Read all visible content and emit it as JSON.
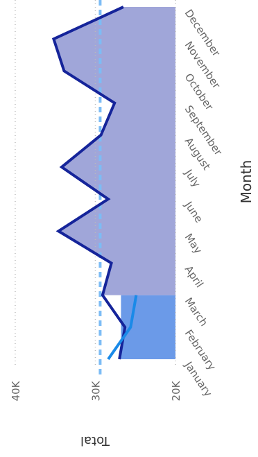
{
  "chart_data": {
    "type": "line",
    "x_label": "Month",
    "y_label": "Total",
    "categories": [
      "January",
      "February",
      "March",
      "April",
      "May",
      "June",
      "July",
      "August",
      "September",
      "October",
      "November",
      "December"
    ],
    "series": [
      {
        "type": "area",
        "color": "#6b9ae8",
        "values": [
          26800,
          26800,
          26800,
          null,
          null,
          null,
          null,
          null,
          null,
          null,
          null,
          null
        ]
      },
      {
        "type": "line",
        "color": "#15249a",
        "fill": "#a0a6d9",
        "fill_from": 2,
        "values": [
          27000,
          26300,
          29100,
          28000,
          34600,
          28400,
          34200,
          29300,
          27600,
          33900,
          35200,
          26500
        ]
      },
      {
        "type": "line",
        "color": "#1a8ae8",
        "values": [
          28400,
          25600,
          24900,
          null,
          null,
          null,
          null,
          null,
          null,
          null,
          null,
          null
        ]
      }
    ],
    "reference_line": {
      "value": 29400,
      "color": "#7cbcf5"
    },
    "ylim": [
      20000,
      41900
    ],
    "yticks": [
      {
        "value": 20000,
        "label": "20K"
      },
      {
        "value": 30000,
        "label": "30K"
      },
      {
        "value": 40000,
        "label": "40K"
      }
    ],
    "grid": true
  }
}
